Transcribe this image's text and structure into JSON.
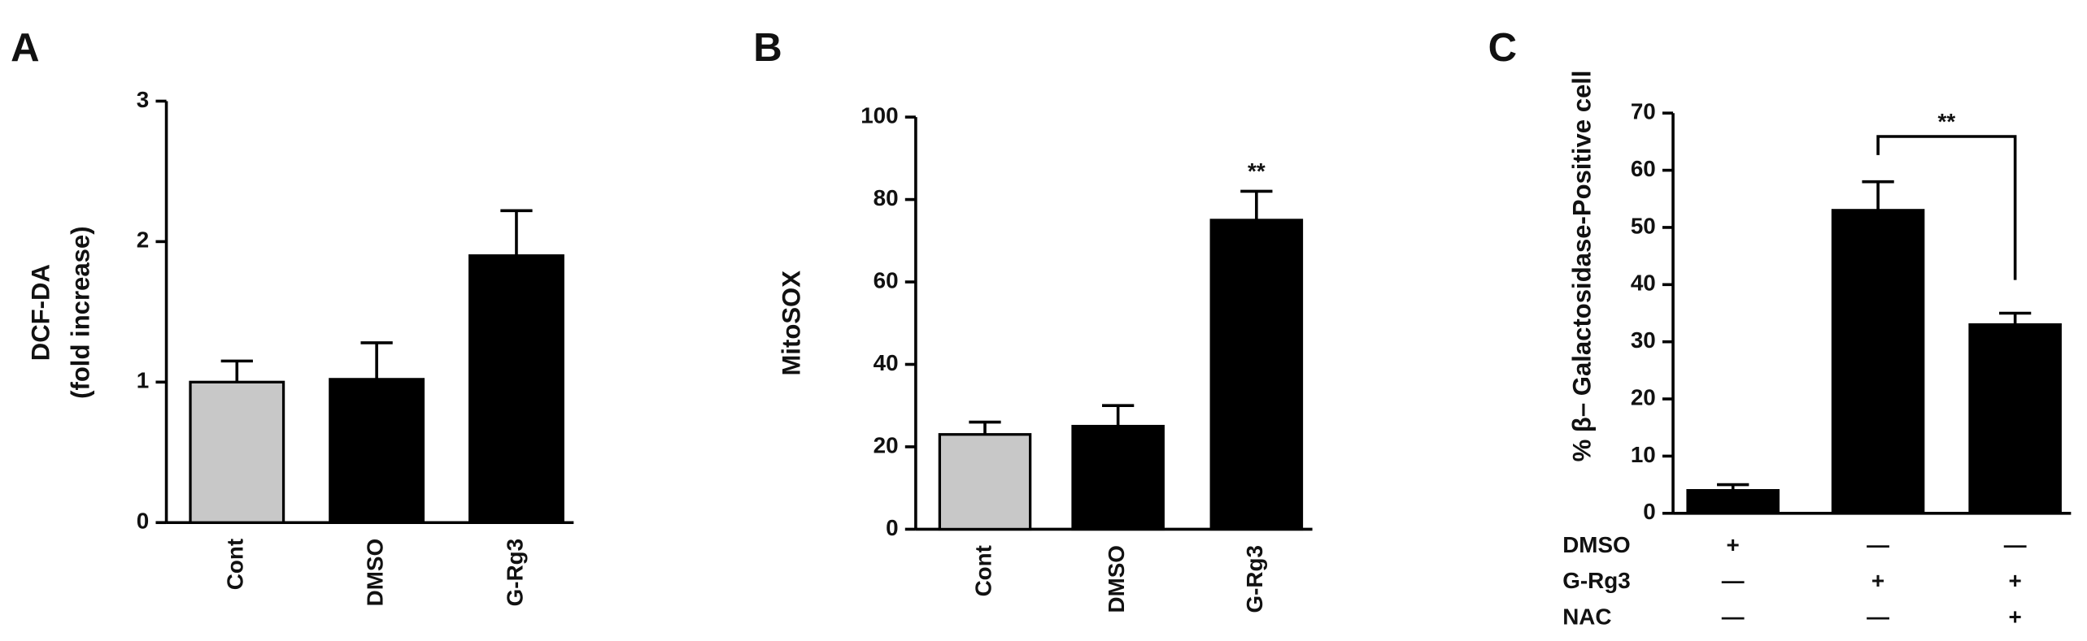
{
  "chart_data": [
    {
      "type": "bar",
      "panel": "A",
      "ylabel": [
        "DCF-DA",
        "(fold increase)"
      ],
      "categories": [
        "Cont",
        "DMSO",
        "G-Rg3"
      ],
      "values": [
        1.0,
        1.02,
        1.9
      ],
      "errors": [
        0.15,
        0.26,
        0.32
      ],
      "colors": [
        "#c8c8c8",
        "#000000",
        "#000000"
      ],
      "ylim": [
        0,
        3
      ],
      "yticks": [
        0,
        1,
        2,
        3
      ]
    },
    {
      "type": "bar",
      "panel": "B",
      "ylabel": [
        "MitoSOX"
      ],
      "categories": [
        "Cont",
        "DMSO",
        "G-Rg3"
      ],
      "values": [
        23,
        25,
        75
      ],
      "errors": [
        3,
        5,
        7
      ],
      "colors": [
        "#c8c8c8",
        "#000000",
        "#000000"
      ],
      "ylim": [
        0,
        100
      ],
      "yticks": [
        0,
        20,
        40,
        60,
        80,
        100
      ],
      "annotation": "**"
    },
    {
      "type": "bar",
      "panel": "C",
      "ylabel": [
        "% β– Galactosidase-Positive cell"
      ],
      "values": [
        4,
        53,
        33
      ],
      "errors": [
        1,
        5,
        2
      ],
      "colors": [
        "#000000",
        "#000000",
        "#000000"
      ],
      "ylim": [
        0,
        70
      ],
      "yticks": [
        0,
        10,
        20,
        30,
        40,
        50,
        60,
        70
      ],
      "annotation": "**",
      "conditions": [
        {
          "name": "DMSO",
          "values": [
            "+",
            "—",
            "—"
          ]
        },
        {
          "name": "G-Rg3",
          "values": [
            "—",
            "+",
            "+"
          ]
        },
        {
          "name": "NAC",
          "values": [
            "—",
            "—",
            "+"
          ]
        }
      ]
    }
  ]
}
